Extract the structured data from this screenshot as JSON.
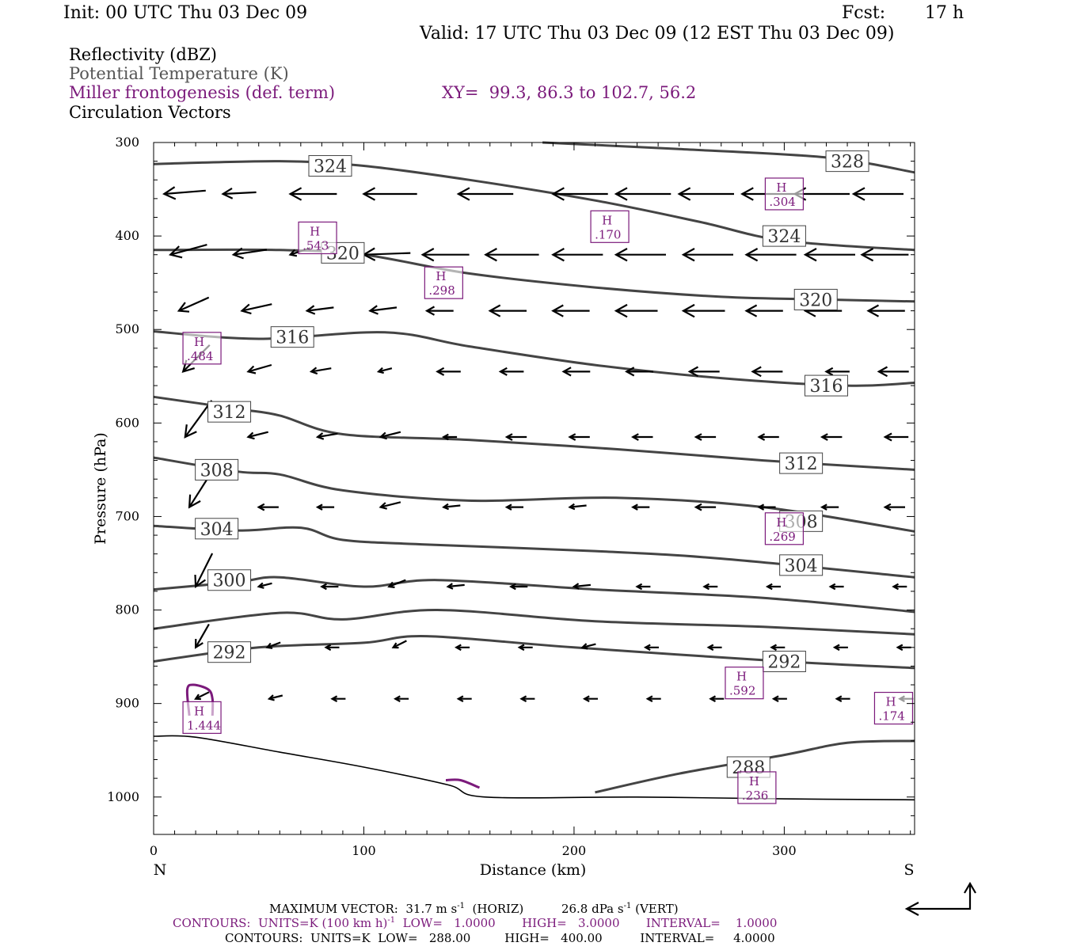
{
  "header": {
    "init": "Init: 00 UTC Thu 03 Dec 09",
    "fcst_label": "Fcst:",
    "fcst_value": "17 h",
    "valid": "Valid: 17 UTC Thu 03 Dec 09 (12 EST Thu 03 Dec 09)"
  },
  "legend": {
    "reflectivity": "Reflectivity (dBZ)",
    "theta": "Potential Temperature (K)",
    "frontogenesis": "Miller frontogenesis (def. term)",
    "xy": "XY=  99.3, 86.3 to 102.7, 56.2",
    "vectors": "Circulation Vectors"
  },
  "footer": {
    "line1_a": "MAXIMUM VECTOR:  31.7 m s",
    "line1_b": "(HORIZ)",
    "line1_c": "26.8 dPa s",
    "line1_d": "(VERT)",
    "sup": "-1",
    "line2_a": "CONTOURS:  UNITS=K (100 km h)",
    "line2_b": "LOW=   1.0000       HIGH=   3.0000       INTERVAL=    1.0000",
    "line3": "CONTOURS:  UNITS=K  LOW=   288.00         HIGH=   400.00          INTERVAL=     4.0000"
  },
  "colors": {
    "theta": "#444444",
    "fronto": "#7b1a7b",
    "vectors": "#000000",
    "terrain": "#000000"
  },
  "chart_data": {
    "type": "cross-section",
    "xlabel": "Distance (km)",
    "ylabel": "Pressure (hPa)",
    "xlim": [
      0,
      362
    ],
    "ylim": [
      1040,
      300
    ],
    "x_ticks": [
      0,
      100,
      200,
      300
    ],
    "y_ticks": [
      300,
      400,
      500,
      600,
      700,
      800,
      900,
      1000
    ],
    "left_end_label": "N",
    "right_end_label": "S",
    "theta_contours": [
      {
        "level": "328",
        "points": [
          [
            185,
            300
          ],
          [
            250,
            307
          ],
          [
            320,
            316
          ],
          [
            362,
            332
          ]
        ],
        "label": [
          330,
          320
        ]
      },
      {
        "level": "324",
        "points": [
          [
            0,
            323
          ],
          [
            60,
            320
          ],
          [
            100,
            325
          ],
          [
            150,
            340
          ],
          [
            210,
            362
          ],
          [
            260,
            385
          ],
          [
            300,
            405
          ],
          [
            362,
            415
          ]
        ],
        "label": [
          84,
          325
        ]
      },
      {
        "level": "324",
        "points": [],
        "label": [
          300,
          400
        ]
      },
      {
        "level": "320",
        "points": [
          [
            0,
            415
          ],
          [
            60,
            415
          ],
          [
            100,
            420
          ],
          [
            150,
            440
          ],
          [
            210,
            455
          ],
          [
            270,
            465
          ],
          [
            320,
            468
          ],
          [
            362,
            470
          ]
        ],
        "label": [
          90,
          418
        ]
      },
      {
        "level": "320",
        "points": [],
        "label": [
          315,
          468
        ]
      },
      {
        "level": "316",
        "points": [
          [
            0,
            502
          ],
          [
            50,
            510
          ],
          [
            110,
            503
          ],
          [
            150,
            518
          ],
          [
            210,
            538
          ],
          [
            270,
            552
          ],
          [
            330,
            560
          ],
          [
            362,
            557
          ]
        ],
        "label": [
          66,
          508
        ]
      },
      {
        "level": "316",
        "points": [],
        "label": [
          320,
          560
        ]
      },
      {
        "level": "312",
        "points": [
          [
            0,
            572
          ],
          [
            40,
            585
          ],
          [
            60,
            592
          ],
          [
            90,
            612
          ],
          [
            150,
            618
          ],
          [
            220,
            628
          ],
          [
            290,
            640
          ],
          [
            362,
            650
          ]
        ],
        "label": [
          36,
          588
        ]
      },
      {
        "level": "312",
        "points": [],
        "label": [
          308,
          643
        ]
      },
      {
        "level": "308",
        "points": [
          [
            0,
            637
          ],
          [
            40,
            652
          ],
          [
            60,
            655
          ],
          [
            90,
            672
          ],
          [
            150,
            683
          ],
          [
            220,
            680
          ],
          [
            290,
            690
          ],
          [
            362,
            716
          ]
        ],
        "label": [
          30,
          650
        ]
      },
      {
        "level": "308",
        "points": [],
        "label": [
          308,
          705
        ]
      },
      {
        "level": "304",
        "points": [
          [
            0,
            710
          ],
          [
            40,
            715
          ],
          [
            70,
            712
          ],
          [
            90,
            725
          ],
          [
            130,
            730
          ],
          [
            210,
            737
          ],
          [
            270,
            745
          ],
          [
            362,
            765
          ]
        ],
        "label": [
          30,
          713
        ]
      },
      {
        "level": "304",
        "points": [],
        "label": [
          308,
          752
        ]
      },
      {
        "level": "300",
        "points": [
          [
            0,
            778
          ],
          [
            40,
            770
          ],
          [
            60,
            765
          ],
          [
            100,
            775
          ],
          [
            135,
            768
          ],
          [
            210,
            778
          ],
          [
            290,
            787
          ],
          [
            362,
            802
          ]
        ],
        "label": [
          36,
          768
        ]
      },
      {
        "level": "",
        "points": [
          [
            0,
            820
          ],
          [
            60,
            803
          ],
          [
            90,
            810
          ],
          [
            135,
            800
          ],
          [
            210,
            812
          ],
          [
            290,
            818
          ],
          [
            362,
            826
          ]
        ],
        "label": null
      },
      {
        "level": "292",
        "points": [
          [
            0,
            855
          ],
          [
            50,
            840
          ],
          [
            100,
            835
          ],
          [
            130,
            828
          ],
          [
            200,
            840
          ],
          [
            300,
            855
          ],
          [
            362,
            862
          ]
        ],
        "label": [
          36,
          845
        ]
      },
      {
        "level": "292",
        "points": [],
        "label": [
          300,
          855
        ]
      },
      {
        "level": "288",
        "points": [
          [
            210,
            995
          ],
          [
            250,
            975
          ],
          [
            300,
            955
          ],
          [
            330,
            942
          ],
          [
            362,
            940
          ]
        ],
        "label": [
          283,
          968
        ]
      }
    ],
    "terrain": [
      [
        0,
        935
      ],
      [
        20,
        936
      ],
      [
        60,
        952
      ],
      [
        100,
        968
      ],
      [
        140,
        987
      ],
      [
        158,
        1000
      ],
      [
        230,
        1000
      ],
      [
        300,
        1002
      ],
      [
        362,
        1003
      ]
    ],
    "fronto_maxima": [
      {
        "label": "H",
        "value": ".304",
        "x": 300,
        "y": 355
      },
      {
        "label": "H",
        "value": ".170",
        "x": 217,
        "y": 390
      },
      {
        "label": "H",
        "value": ".543",
        "x": 78,
        "y": 402
      },
      {
        "label": "H",
        "value": ".298",
        "x": 138,
        "y": 450
      },
      {
        "label": "H",
        "value": ".484",
        "x": 23,
        "y": 520
      },
      {
        "label": "H",
        "value": ".269",
        "x": 300,
        "y": 713
      },
      {
        "label": "H",
        "value": ".592",
        "x": 281,
        "y": 878
      },
      {
        "label": "H",
        "value": ".174",
        "x": 352,
        "y": 905
      },
      {
        "label": "H",
        "value": "1.444",
        "x": 23,
        "y": 915
      },
      {
        "label": "H",
        "value": ".236",
        "x": 287,
        "y": 990
      }
    ],
    "fronto_contours": [
      {
        "level": "1",
        "points": [
          [
            17,
            913
          ],
          [
            16,
            885
          ],
          [
            19,
            880
          ],
          [
            26,
            885
          ],
          [
            28,
            895
          ],
          [
            28,
            913
          ]
        ]
      },
      {
        "level": "1",
        "points": [
          [
            139,
            982
          ],
          [
            146,
            982
          ],
          [
            155,
            990
          ]
        ]
      }
    ],
    "vector_rows": [
      {
        "p": 355,
        "x": [
          5,
          33,
          65,
          100,
          145,
          190,
          220,
          250,
          280,
          305,
          333
        ],
        "u": [
          -25,
          -20,
          -28,
          -32,
          -33,
          -33,
          -33,
          -33,
          -33,
          -33,
          -30
        ],
        "w": [
          -2,
          -1,
          0,
          0,
          0,
          0,
          0,
          0,
          0,
          0,
          0
        ]
      },
      {
        "p": 420,
        "x": [
          8,
          38,
          65,
          100,
          128,
          158,
          190,
          220,
          252,
          282,
          310,
          337
        ],
        "u": [
          -22,
          -20,
          -12,
          -28,
          -28,
          -32,
          -30,
          -30,
          -30,
          -30,
          -30,
          -28
        ],
        "w": [
          -6,
          -3,
          -4,
          -1,
          0,
          0,
          0,
          0,
          0,
          0,
          0,
          0
        ]
      },
      {
        "p": 480,
        "x": [
          12,
          42,
          73,
          103,
          130,
          160,
          190,
          220,
          252,
          282,
          310,
          340
        ],
        "u": [
          -18,
          -18,
          -16,
          -16,
          -16,
          -22,
          -22,
          -25,
          -25,
          -22,
          -22,
          -22
        ],
        "w": [
          -8,
          -4,
          -2,
          -2,
          0,
          0,
          0,
          0,
          0,
          0,
          0,
          0
        ]
      },
      {
        "p": 545,
        "x": [
          14,
          45,
          75,
          107,
          135,
          165,
          195,
          225,
          255,
          285,
          320,
          345
        ],
        "u": [
          -16,
          -14,
          -12,
          -8,
          -14,
          -14,
          -16,
          -16,
          -18,
          -18,
          -14,
          -18
        ],
        "w": [
          -16,
          -4,
          -2,
          -2,
          0,
          0,
          0,
          0,
          0,
          0,
          0,
          0
        ]
      },
      {
        "p": 615,
        "x": [
          15,
          45,
          78,
          108,
          138,
          168,
          198,
          228,
          258,
          288,
          318,
          348
        ],
        "u": [
          -16,
          -12,
          -12,
          -12,
          -8,
          -12,
          -12,
          -12,
          -12,
          -12,
          -12,
          -14
        ],
        "w": [
          -22,
          -3,
          -2,
          -3,
          0,
          0,
          0,
          0,
          0,
          0,
          0,
          0
        ]
      },
      {
        "p": 690,
        "x": [
          17,
          50,
          78,
          108,
          138,
          168,
          198,
          228,
          258,
          288,
          318,
          348
        ],
        "u": [
          -14,
          -12,
          -10,
          -12,
          -10,
          -10,
          -10,
          -10,
          -12,
          -10,
          -10,
          -12
        ],
        "w": [
          -22,
          0,
          0,
          -3,
          -1,
          0,
          -1,
          0,
          0,
          0,
          0,
          0
        ]
      },
      {
        "p": 775,
        "x": [
          20,
          50,
          80,
          112,
          140,
          170,
          200,
          230,
          262,
          292,
          322,
          352
        ],
        "u": [
          -10,
          -8,
          -10,
          -10,
          -10,
          -10,
          -10,
          -8,
          -8,
          -8,
          -8,
          -8
        ],
        "w": [
          -20,
          -2,
          0,
          -4,
          -1,
          0,
          -1,
          0,
          0,
          0,
          0,
          0
        ]
      },
      {
        "p": 840,
        "x": [
          20,
          54,
          82,
          114,
          144,
          174,
          204,
          234,
          264,
          294,
          324,
          354
        ],
        "u": [
          -8,
          -8,
          -8,
          -8,
          -8,
          -8,
          -8,
          -8,
          -8,
          -8,
          -8,
          -8
        ],
        "w": [
          -14,
          -3,
          0,
          -4,
          0,
          0,
          -2,
          0,
          0,
          0,
          0,
          0
        ]
      },
      {
        "p": 895,
        "x": [
          20,
          55,
          85,
          115,
          145,
          175,
          205,
          235,
          265,
          295,
          325,
          355
        ],
        "u": [
          -8,
          -8,
          -8,
          -8,
          -8,
          -8,
          -8,
          -8,
          -8,
          -8,
          -8,
          -8
        ],
        "w": [
          -4,
          -2,
          0,
          0,
          0,
          0,
          0,
          0,
          0,
          0,
          0,
          0
        ]
      }
    ]
  }
}
